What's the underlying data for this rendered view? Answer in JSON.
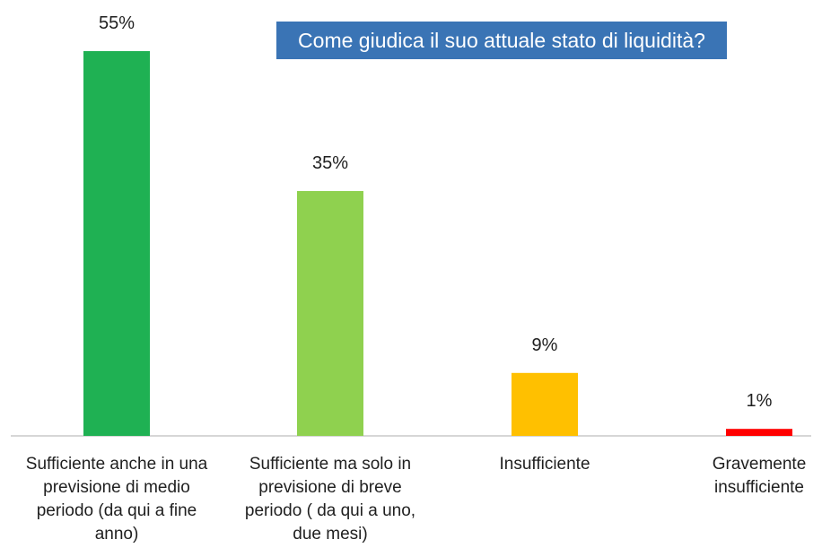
{
  "chart_data": {
    "type": "bar",
    "title": "Come giudica il suo attuale stato di liquidità?",
    "categories": [
      "Sufficiente anche in una\nprevisione di medio\nperiodo (da qui a fine\nanno)",
      "Sufficiente ma solo in\nprevisione di breve\nperiodo ( da qui a uno,\ndue mesi)",
      "Insufficiente",
      "Gravemente\ninsufficiente"
    ],
    "values": [
      55,
      35,
      9,
      1
    ],
    "data_labels": [
      "55%",
      "35%",
      "9%",
      "1%"
    ],
    "colors": [
      "#1fb153",
      "#8fd14f",
      "#ffc000",
      "#ff0000"
    ],
    "xlabel": "",
    "ylabel": "",
    "ylim": [
      0,
      55
    ],
    "grid": false,
    "legend": "none"
  },
  "colors": {
    "title_background": "#3a74b5",
    "title_text": "#ffffff",
    "axis": "#c8c8c8"
  }
}
